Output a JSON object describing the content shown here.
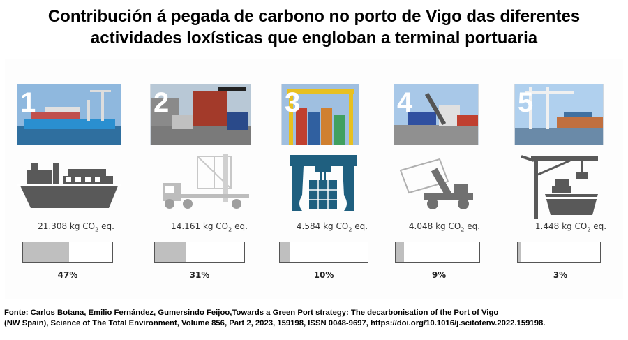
{
  "title_line1": "Contribución á pegada de carbono no porto de Vigo das diferentes",
  "title_line2": "actividades loxísticas que engloban a terminal portuaria",
  "activities": [
    {
      "number": "1",
      "emission_value": "21.308",
      "emission_unit": "kg CO",
      "emission_suffix": "eq.",
      "subscript": "2",
      "share": 0.47,
      "percent_label": "47%",
      "icon": "ship-icon"
    },
    {
      "number": "2",
      "emission_value": "14.161",
      "emission_unit": "kg CO",
      "emission_suffix": "eq.",
      "subscript": "2",
      "share": 0.31,
      "percent_label": "31%",
      "icon": "truck-crane-icon"
    },
    {
      "number": "3",
      "emission_value": "4.584",
      "emission_unit": "kg CO",
      "emission_suffix": "eq.",
      "subscript": "2",
      "share": 0.1,
      "percent_label": "10%",
      "icon": "gantry-crane-icon"
    },
    {
      "number": "4",
      "emission_value": "4.048",
      "emission_unit": "kg CO",
      "emission_suffix": "eq.",
      "subscript": "2",
      "share": 0.09,
      "percent_label": "9%",
      "icon": "reach-stacker-icon"
    },
    {
      "number": "5",
      "emission_value": "1.448",
      "emission_unit": "kg CO",
      "emission_suffix": "eq.",
      "subscript": "2",
      "share": 0.03,
      "percent_label": "3%",
      "icon": "quay-crane-icon"
    }
  ],
  "source_line1": "Fonte: Carlos Botana, Emilio Fernández, Gumersindo Feijoo,Towards a Green Port strategy: The decarbonisation of the Port of Vigo",
  "source_line2": "(NW Spain), Science of The Total Environment, Volume 856, Part 2, 2023, 159198, ISSN 0048-9697, https://doi.org/10.1016/j.scitotenv.2022.159198.",
  "colors": {
    "bar_fill": "#bfbfbf",
    "bar_border": "#555555",
    "ship_grey": "#595959",
    "gantry_blue": "#1f5f7f",
    "light_grey": "#c8c8c8"
  }
}
